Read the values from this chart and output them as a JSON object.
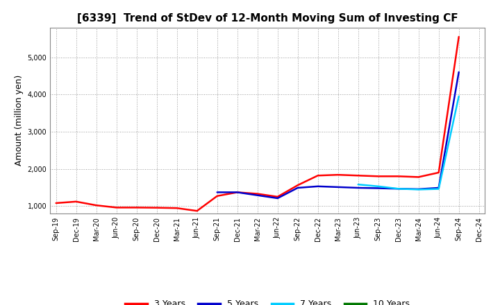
{
  "title": "[6339]  Trend of StDev of 12-Month Moving Sum of Investing CF",
  "ylabel": "Amount (million yen)",
  "figure_bg": "#ffffff",
  "axes_bg": "#ffffff",
  "grid_color": "#999999",
  "ylim": [
    800,
    5800
  ],
  "yticks": [
    1000,
    2000,
    3000,
    4000,
    5000
  ],
  "x_labels": [
    "Sep-19",
    "Dec-19",
    "Mar-20",
    "Jun-20",
    "Sep-20",
    "Dec-20",
    "Mar-21",
    "Jun-21",
    "Sep-21",
    "Dec-21",
    "Mar-22",
    "Jun-22",
    "Sep-22",
    "Dec-22",
    "Mar-23",
    "Jun-23",
    "Sep-23",
    "Dec-23",
    "Mar-24",
    "Jun-24",
    "Sep-24",
    "Dec-24"
  ],
  "series": {
    "3 Years": {
      "color": "#ff0000",
      "values": [
        1080,
        1120,
        1020,
        960,
        960,
        955,
        945,
        870,
        1270,
        1370,
        1330,
        1250,
        1560,
        1820,
        1840,
        1820,
        1800,
        1800,
        1780,
        1900,
        5550,
        null
      ]
    },
    "5 Years": {
      "color": "#0000cc",
      "values": [
        null,
        null,
        null,
        null,
        null,
        null,
        null,
        null,
        1370,
        1370,
        1290,
        1210,
        1490,
        1530,
        1510,
        1490,
        1480,
        1465,
        1455,
        1490,
        4600,
        null
      ]
    },
    "7 Years": {
      "color": "#00ccff",
      "values": [
        null,
        null,
        null,
        null,
        null,
        null,
        null,
        null,
        null,
        null,
        null,
        null,
        null,
        null,
        null,
        1580,
        1530,
        1465,
        1445,
        1460,
        3950,
        null
      ]
    },
    "10 Years": {
      "color": "#007700",
      "values": [
        null,
        null,
        null,
        null,
        null,
        null,
        null,
        null,
        null,
        null,
        null,
        null,
        null,
        null,
        null,
        null,
        null,
        null,
        null,
        null,
        null,
        null
      ]
    }
  },
  "legend_entries": [
    "3 Years",
    "5 Years",
    "7 Years",
    "10 Years"
  ],
  "legend_colors": [
    "#ff0000",
    "#0000cc",
    "#00ccff",
    "#007700"
  ],
  "title_fontsize": 11,
  "ylabel_fontsize": 9,
  "tick_fontsize": 7,
  "legend_fontsize": 9,
  "linewidth": 1.8
}
